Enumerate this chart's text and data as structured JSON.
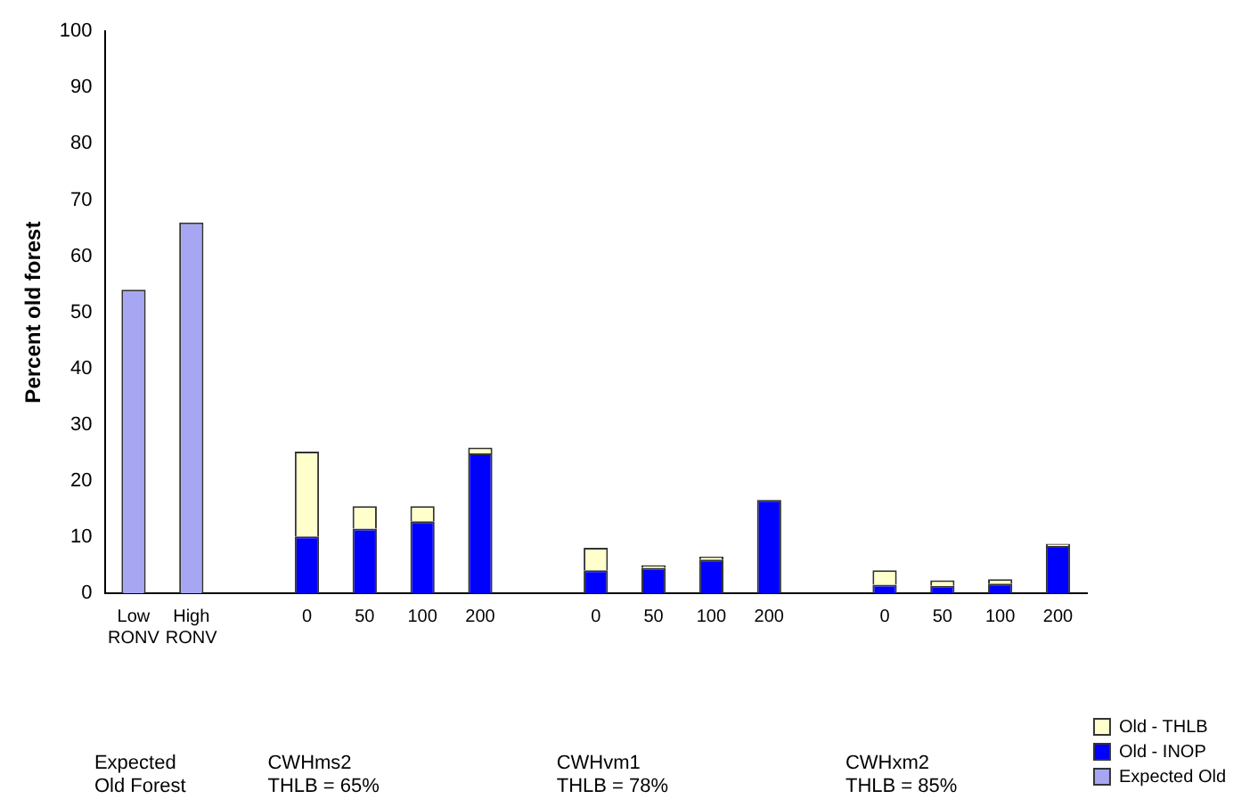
{
  "chart_data": {
    "type": "bar",
    "ylabel": "Percent old forest",
    "categories": [
      "Low RONV",
      "High RONV",
      null,
      "0",
      "50",
      "100",
      "200",
      null,
      "0",
      "50",
      "100",
      "200",
      null,
      "0",
      "50",
      "100",
      "200"
    ],
    "stacked": true,
    "series": [
      {
        "name": "Expected Old",
        "color": "#a6a6f2",
        "values": [
          54,
          66,
          null,
          null,
          null,
          null,
          null,
          null,
          null,
          null,
          null,
          null,
          null,
          null,
          null,
          null,
          null
        ]
      },
      {
        "name": "Old - INOP",
        "color": "#0000ff",
        "values": [
          null,
          null,
          null,
          10.1,
          11.5,
          12.8,
          24.9,
          null,
          4.1,
          4.5,
          6.0,
          16.6,
          null,
          1.5,
          1.3,
          1.7,
          8.4
        ]
      },
      {
        "name": "Old - THLB",
        "color": "#ffffcc",
        "values": [
          null,
          null,
          null,
          15.1,
          4.0,
          2.7,
          1.0,
          null,
          4.0,
          0.5,
          0.5,
          null,
          null,
          2.6,
          1.0,
          0.8,
          0.4
        ]
      }
    ],
    "ylim": [
      0,
      100
    ],
    "yticks": [
      0,
      10,
      20,
      30,
      40,
      50,
      60,
      70,
      80,
      90,
      100
    ],
    "grid": false,
    "legend": "bottom right",
    "annotations": [
      "Expected Old Forest",
      "CWHms2 THLB = 65%",
      "CWHvm1 THLB = 78%",
      "CWHxm2 THLB = 85%"
    ]
  }
}
